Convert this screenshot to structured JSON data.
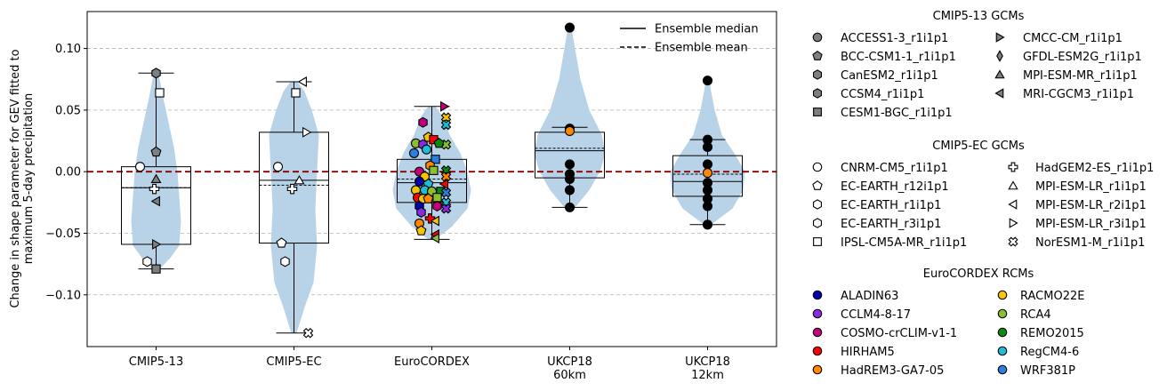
{
  "chart_data": {
    "type": "box+violin+strip",
    "ylabel_lines": [
      "Change in shape parameter for GEV fitted to",
      "maximum 5-day precipitation"
    ],
    "ylim": [
      -0.142,
      0.13
    ],
    "yticks": [
      0.1,
      0.05,
      0.0,
      -0.05,
      -0.1
    ],
    "ytick_labels": [
      "0.10",
      "0.05",
      "0.00",
      "−0.05",
      "−0.10"
    ],
    "grid_y": true,
    "zero_line_color": "#8b0000",
    "violin_color": "#b8d3e8",
    "categories": [
      {
        "label_lines": [
          "CMIP5-13"
        ]
      },
      {
        "label_lines": [
          "CMIP5-EC"
        ]
      },
      {
        "label_lines": [
          "EuroCORDEX"
        ]
      },
      {
        "label_lines": [
          "UKCP18",
          "60km"
        ]
      },
      {
        "label_lines": [
          "UKCP18",
          "12km"
        ]
      }
    ],
    "boxes": [
      {
        "min": -0.079,
        "q1": -0.059,
        "median": -0.013,
        "q3": 0.004,
        "max": 0.08,
        "mean": -0.013
      },
      {
        "min": -0.131,
        "q1": -0.058,
        "median": -0.007,
        "q3": 0.032,
        "max": 0.073,
        "mean": -0.011
      },
      {
        "min": -0.055,
        "q1": -0.025,
        "median": -0.009,
        "q3": 0.01,
        "max": 0.053,
        "mean": -0.006
      },
      {
        "min": -0.029,
        "q1": -0.005,
        "median": 0.017,
        "q3": 0.032,
        "max": 0.036,
        "mean": 0.019
      },
      {
        "min": -0.043,
        "q1": -0.02,
        "median": -0.008,
        "q3": 0.013,
        "max": 0.026,
        "mean": -0.002
      }
    ],
    "violins": [
      {
        "ymin": -0.079,
        "ymax": 0.08,
        "widths": [
          [
            -0.079,
            4
          ],
          [
            -0.07,
            16
          ],
          [
            -0.06,
            26
          ],
          [
            -0.04,
            28
          ],
          [
            -0.02,
            26
          ],
          [
            0.0,
            24
          ],
          [
            0.02,
            20
          ],
          [
            0.04,
            14
          ],
          [
            0.06,
            8
          ],
          [
            0.075,
            4
          ],
          [
            0.08,
            2
          ]
        ]
      },
      {
        "ymin": -0.131,
        "ymax": 0.073,
        "widths": [
          [
            -0.131,
            3
          ],
          [
            -0.11,
            12
          ],
          [
            -0.09,
            22
          ],
          [
            -0.06,
            26
          ],
          [
            -0.03,
            24
          ],
          [
            0.0,
            26
          ],
          [
            0.03,
            28
          ],
          [
            0.05,
            20
          ],
          [
            0.065,
            12
          ],
          [
            0.073,
            4
          ]
        ]
      },
      {
        "ymin": -0.055,
        "ymax": 0.053,
        "widths": [
          [
            -0.055,
            4
          ],
          [
            -0.045,
            22
          ],
          [
            -0.03,
            40
          ],
          [
            -0.015,
            44
          ],
          [
            0.0,
            40
          ],
          [
            0.015,
            32
          ],
          [
            0.03,
            20
          ],
          [
            0.045,
            12
          ],
          [
            0.053,
            4
          ]
        ]
      },
      {
        "ymin": -0.029,
        "ymax": 0.117,
        "widths": [
          [
            -0.029,
            6
          ],
          [
            -0.015,
            22
          ],
          [
            0.0,
            34
          ],
          [
            0.015,
            40
          ],
          [
            0.03,
            36
          ],
          [
            0.05,
            22
          ],
          [
            0.075,
            12
          ],
          [
            0.1,
            6
          ],
          [
            0.117,
            2
          ]
        ]
      },
      {
        "ymin": -0.043,
        "ymax": 0.074,
        "widths": [
          [
            -0.043,
            4
          ],
          [
            -0.03,
            28
          ],
          [
            -0.015,
            40
          ],
          [
            0.0,
            42
          ],
          [
            0.015,
            30
          ],
          [
            0.03,
            16
          ],
          [
            0.05,
            8
          ],
          [
            0.065,
            4
          ],
          [
            0.074,
            2
          ]
        ]
      }
    ],
    "points": [
      {
        "cat": 0,
        "dx": -18,
        "y": 0.004,
        "marker": "o",
        "color": "#ffffff"
      },
      {
        "cat": 0,
        "dx": 0,
        "y": 0.08,
        "marker": "h",
        "color": "#7f7f7f"
      },
      {
        "cat": 0,
        "dx": 4,
        "y": 0.064,
        "marker": "s",
        "color": "#ffffff"
      },
      {
        "cat": 0,
        "dx": 0,
        "y": 0.016,
        "marker": "p",
        "color": "#7f7f7f"
      },
      {
        "cat": 0,
        "dx": 0,
        "y": -0.006,
        "marker": "^",
        "color": "#7f7f7f"
      },
      {
        "cat": 0,
        "dx": -2,
        "y": -0.014,
        "marker": "P",
        "color": "#ffffff"
      },
      {
        "cat": 0,
        "dx": 0,
        "y": -0.024,
        "marker": "<",
        "color": "#7f7f7f"
      },
      {
        "cat": 0,
        "dx": 0,
        "y": -0.059,
        "marker": ">",
        "color": "#7f7f7f"
      },
      {
        "cat": 0,
        "dx": -10,
        "y": -0.073,
        "marker": "h",
        "color": "#ffffff"
      },
      {
        "cat": 0,
        "dx": 0,
        "y": -0.079,
        "marker": "s",
        "color": "#7f7f7f"
      },
      {
        "cat": 1,
        "dx": -18,
        "y": 0.004,
        "marker": "o",
        "color": "#ffffff"
      },
      {
        "cat": 1,
        "dx": 10,
        "y": 0.073,
        "marker": "<",
        "color": "#ffffff"
      },
      {
        "cat": 1,
        "dx": 2,
        "y": 0.064,
        "marker": "s",
        "color": "#ffffff"
      },
      {
        "cat": 1,
        "dx": 14,
        "y": 0.032,
        "marker": ">",
        "color": "#ffffff"
      },
      {
        "cat": 1,
        "dx": 6,
        "y": -0.007,
        "marker": "^",
        "color": "#ffffff"
      },
      {
        "cat": 1,
        "dx": -2,
        "y": -0.014,
        "marker": "P",
        "color": "#ffffff"
      },
      {
        "cat": 1,
        "dx": -14,
        "y": -0.058,
        "marker": "p",
        "color": "#ffffff"
      },
      {
        "cat": 1,
        "dx": -10,
        "y": -0.073,
        "marker": "h",
        "color": "#ffffff"
      },
      {
        "cat": 1,
        "dx": 16,
        "y": -0.131,
        "marker": "X",
        "color": "#ffffff"
      },
      {
        "cat": 2,
        "dx": 14,
        "y": 0.053,
        "marker": ">",
        "color": "#c0007a"
      },
      {
        "cat": 2,
        "dx": 16,
        "y": 0.044,
        "marker": "X",
        "color": "#f5c400"
      },
      {
        "cat": 2,
        "dx": 16,
        "y": 0.038,
        "marker": "X",
        "color": "#1fbcd4"
      },
      {
        "cat": 2,
        "dx": -10,
        "y": 0.04,
        "marker": "h",
        "color": "#c0007a"
      },
      {
        "cat": 2,
        "dx": -4,
        "y": 0.028,
        "marker": "p",
        "color": "#f5c400"
      },
      {
        "cat": 2,
        "dx": 2,
        "y": 0.026,
        "marker": "s",
        "color": "#ff0000"
      },
      {
        "cat": 2,
        "dx": -18,
        "y": 0.023,
        "marker": "o",
        "color": "#8bbf30"
      },
      {
        "cat": 2,
        "dx": -10,
        "y": 0.022,
        "marker": "h",
        "color": "#8a2be2"
      },
      {
        "cat": 2,
        "dx": 16,
        "y": 0.022,
        "marker": "X",
        "color": "#8bbf30"
      },
      {
        "cat": 2,
        "dx": 8,
        "y": 0.023,
        "marker": "p",
        "color": "#0a8a0a"
      },
      {
        "cat": 2,
        "dx": -6,
        "y": 0.018,
        "marker": "o",
        "color": "#1fbcd4"
      },
      {
        "cat": 2,
        "dx": -20,
        "y": 0.015,
        "marker": "o",
        "color": "#2b7fe0"
      },
      {
        "cat": 2,
        "dx": 4,
        "y": 0.01,
        "marker": "s",
        "color": "#2b7fe0"
      },
      {
        "cat": 2,
        "dx": -2,
        "y": 0.005,
        "marker": "h",
        "color": "#ff8800"
      },
      {
        "cat": 2,
        "dx": 2,
        "y": 0.001,
        "marker": "s",
        "color": "#8bbf30"
      },
      {
        "cat": 2,
        "dx": 16,
        "y": 0.001,
        "marker": "X",
        "color": "#0a8a0a"
      },
      {
        "cat": 2,
        "dx": -14,
        "y": 0.0,
        "marker": "o",
        "color": "#c0007a"
      },
      {
        "cat": 2,
        "dx": 16,
        "y": -0.004,
        "marker": "X",
        "color": "#ff8800"
      },
      {
        "cat": 2,
        "dx": -8,
        "y": -0.004,
        "marker": "o",
        "color": "#f5c400"
      },
      {
        "cat": 2,
        "dx": -14,
        "y": -0.008,
        "marker": "o",
        "color": "#0000b0"
      },
      {
        "cat": 2,
        "dx": -4,
        "y": -0.01,
        "marker": "p",
        "color": "#1fbcd4"
      },
      {
        "cat": 2,
        "dx": 14,
        "y": -0.01,
        "marker": "<",
        "color": "#ff0000"
      },
      {
        "cat": 2,
        "dx": -18,
        "y": -0.015,
        "marker": "o",
        "color": "#f5c400"
      },
      {
        "cat": 2,
        "dx": -8,
        "y": -0.015,
        "marker": "o",
        "color": "#1fbcd4"
      },
      {
        "cat": 2,
        "dx": 0,
        "y": -0.016,
        "marker": "o",
        "color": "#8bbf30"
      },
      {
        "cat": 2,
        "dx": 10,
        "y": -0.016,
        "marker": "s",
        "color": "#0a8a0a"
      },
      {
        "cat": 2,
        "dx": 16,
        "y": -0.017,
        "marker": "X",
        "color": "#2b7fe0"
      },
      {
        "cat": 2,
        "dx": -16,
        "y": -0.021,
        "marker": "o",
        "color": "#ff0000"
      },
      {
        "cat": 2,
        "dx": -10,
        "y": -0.022,
        "marker": "o",
        "color": "#f5c400"
      },
      {
        "cat": 2,
        "dx": -4,
        "y": -0.022,
        "marker": "p",
        "color": "#ff8800"
      },
      {
        "cat": 2,
        "dx": 6,
        "y": -0.021,
        "marker": "s",
        "color": "#8bbf30"
      },
      {
        "cat": 2,
        "dx": 16,
        "y": -0.025,
        "marker": "X",
        "color": "#1fbcd4"
      },
      {
        "cat": 2,
        "dx": -14,
        "y": -0.028,
        "marker": "h",
        "color": "#0000b0"
      },
      {
        "cat": 2,
        "dx": 6,
        "y": -0.028,
        "marker": "h",
        "color": "#c0007a"
      },
      {
        "cat": 2,
        "dx": 16,
        "y": -0.03,
        "marker": "X",
        "color": "#8a2be2"
      },
      {
        "cat": 2,
        "dx": -12,
        "y": -0.033,
        "marker": "h",
        "color": "#8a2be2"
      },
      {
        "cat": 2,
        "dx": -2,
        "y": -0.038,
        "marker": "P",
        "color": "#ff0000"
      },
      {
        "cat": 2,
        "dx": 4,
        "y": -0.04,
        "marker": "<",
        "color": "#f5c400"
      },
      {
        "cat": 2,
        "dx": -14,
        "y": -0.042,
        "marker": "o",
        "color": "#ff8800"
      },
      {
        "cat": 2,
        "dx": -12,
        "y": -0.048,
        "marker": "p",
        "color": "#f5c400"
      },
      {
        "cat": 2,
        "dx": 4,
        "y": -0.051,
        "marker": "<",
        "color": "#ff0000"
      },
      {
        "cat": 2,
        "dx": 4,
        "y": -0.054,
        "marker": "<",
        "color": "#8bbf30"
      },
      {
        "cat": 3,
        "dx": 0,
        "y": 0.117,
        "marker": "o",
        "color": "#000000"
      },
      {
        "cat": 3,
        "dx": 0,
        "y": 0.035,
        "marker": "o",
        "color": "#000000"
      },
      {
        "cat": 3,
        "dx": 0,
        "y": 0.033,
        "marker": "o",
        "color": "#ff8800"
      },
      {
        "cat": 3,
        "dx": 0,
        "y": 0.006,
        "marker": "o",
        "color": "#000000"
      },
      {
        "cat": 3,
        "dx": 0,
        "y": -0.002,
        "marker": "o",
        "color": "#000000"
      },
      {
        "cat": 3,
        "dx": 0,
        "y": -0.006,
        "marker": "o",
        "color": "#000000"
      },
      {
        "cat": 3,
        "dx": 0,
        "y": -0.015,
        "marker": "o",
        "color": "#000000"
      },
      {
        "cat": 3,
        "dx": 0,
        "y": -0.029,
        "marker": "o",
        "color": "#000000"
      },
      {
        "cat": 4,
        "dx": 0,
        "y": 0.074,
        "marker": "o",
        "color": "#000000"
      },
      {
        "cat": 4,
        "dx": 0,
        "y": 0.026,
        "marker": "o",
        "color": "#000000"
      },
      {
        "cat": 4,
        "dx": 0,
        "y": 0.02,
        "marker": "o",
        "color": "#000000"
      },
      {
        "cat": 4,
        "dx": 0,
        "y": 0.006,
        "marker": "o",
        "color": "#000000"
      },
      {
        "cat": 4,
        "dx": 0,
        "y": -0.001,
        "marker": "o",
        "color": "#ff8800"
      },
      {
        "cat": 4,
        "dx": 0,
        "y": -0.009,
        "marker": "o",
        "color": "#000000"
      },
      {
        "cat": 4,
        "dx": 0,
        "y": -0.015,
        "marker": "o",
        "color": "#000000"
      },
      {
        "cat": 4,
        "dx": 0,
        "y": -0.022,
        "marker": "o",
        "color": "#000000"
      },
      {
        "cat": 4,
        "dx": 0,
        "y": -0.028,
        "marker": "o",
        "color": "#000000"
      },
      {
        "cat": 4,
        "dx": 0,
        "y": -0.043,
        "marker": "o",
        "color": "#000000"
      }
    ],
    "inset_legend": [
      {
        "label": "Ensemble median",
        "style": "solid"
      },
      {
        "label": "Ensemble mean",
        "style": "dashed"
      }
    ],
    "legend_groups": [
      {
        "title": "CMIP5-13 GCMs",
        "col1": [
          {
            "label": "ACCESS1-3_r1i1p1",
            "marker": "o",
            "color": "#7f7f7f"
          },
          {
            "label": "BCC-CSM1-1_r1i1p1",
            "marker": "p",
            "color": "#7f7f7f"
          },
          {
            "label": "CanESM2_r1i1p1",
            "marker": "h",
            "color": "#7f7f7f"
          },
          {
            "label": "CCSM4_r1i1p1",
            "marker": "h",
            "color": "#7f7f7f"
          },
          {
            "label": "CESM1-BGC_r1i1p1",
            "marker": "s",
            "color": "#7f7f7f"
          }
        ],
        "col2": [
          {
            "label": "CMCC-CM_r1i1p1",
            "marker": ">",
            "color": "#7f7f7f"
          },
          {
            "label": "GFDL-ESM2G_r1i1p1",
            "marker": "d",
            "color": "#7f7f7f"
          },
          {
            "label": "MPI-ESM-MR_r1i1p1",
            "marker": "^",
            "color": "#7f7f7f"
          },
          {
            "label": "MRI-CGCM3_r1i1p1",
            "marker": "<",
            "color": "#7f7f7f"
          }
        ]
      },
      {
        "title": "CMIP5-EC GCMs",
        "col1": [
          {
            "label": "CNRM-CM5_r1i1p1",
            "marker": "o",
            "color": "#ffffff"
          },
          {
            "label": "EC-EARTH_r12i1p1",
            "marker": "p",
            "color": "#ffffff"
          },
          {
            "label": "EC-EARTH_r1i1p1",
            "marker": "h",
            "color": "#ffffff"
          },
          {
            "label": "EC-EARTH_r3i1p1",
            "marker": "h",
            "color": "#ffffff"
          },
          {
            "label": "IPSL-CM5A-MR_r1i1p1",
            "marker": "s",
            "color": "#ffffff"
          }
        ],
        "col2": [
          {
            "label": "HadGEM2-ES_r1i1p1",
            "marker": "P",
            "color": "#ffffff"
          },
          {
            "label": "MPI-ESM-LR_r1i1p1",
            "marker": "^",
            "color": "#ffffff"
          },
          {
            "label": "MPI-ESM-LR_r2i1p1",
            "marker": "<",
            "color": "#ffffff"
          },
          {
            "label": "MPI-ESM-LR_r3i1p1",
            "marker": ">",
            "color": "#ffffff"
          },
          {
            "label": "NorESM1-M_r1i1p1",
            "marker": "X",
            "color": "#ffffff"
          }
        ]
      },
      {
        "title": "EuroCORDEX RCMs",
        "col1": [
          {
            "label": "ALADIN63",
            "marker": "o",
            "color": "#0000b0"
          },
          {
            "label": "CCLM4-8-17",
            "marker": "o",
            "color": "#8a2be2"
          },
          {
            "label": "COSMO-crCLIM-v1-1",
            "marker": "o",
            "color": "#c0007a"
          },
          {
            "label": "HIRHAM5",
            "marker": "o",
            "color": "#ff0000"
          },
          {
            "label": "HadREM3-GA7-05",
            "marker": "o",
            "color": "#ff8800"
          }
        ],
        "col2": [
          {
            "label": "RACMO22E",
            "marker": "o",
            "color": "#f5c400"
          },
          {
            "label": "RCA4",
            "marker": "o",
            "color": "#8bbf30"
          },
          {
            "label": "REMO2015",
            "marker": "o",
            "color": "#0a8a0a"
          },
          {
            "label": "RegCM4-6",
            "marker": "o",
            "color": "#1fbcd4"
          },
          {
            "label": "WRF381P",
            "marker": "o",
            "color": "#2b7fe0"
          }
        ]
      }
    ]
  }
}
